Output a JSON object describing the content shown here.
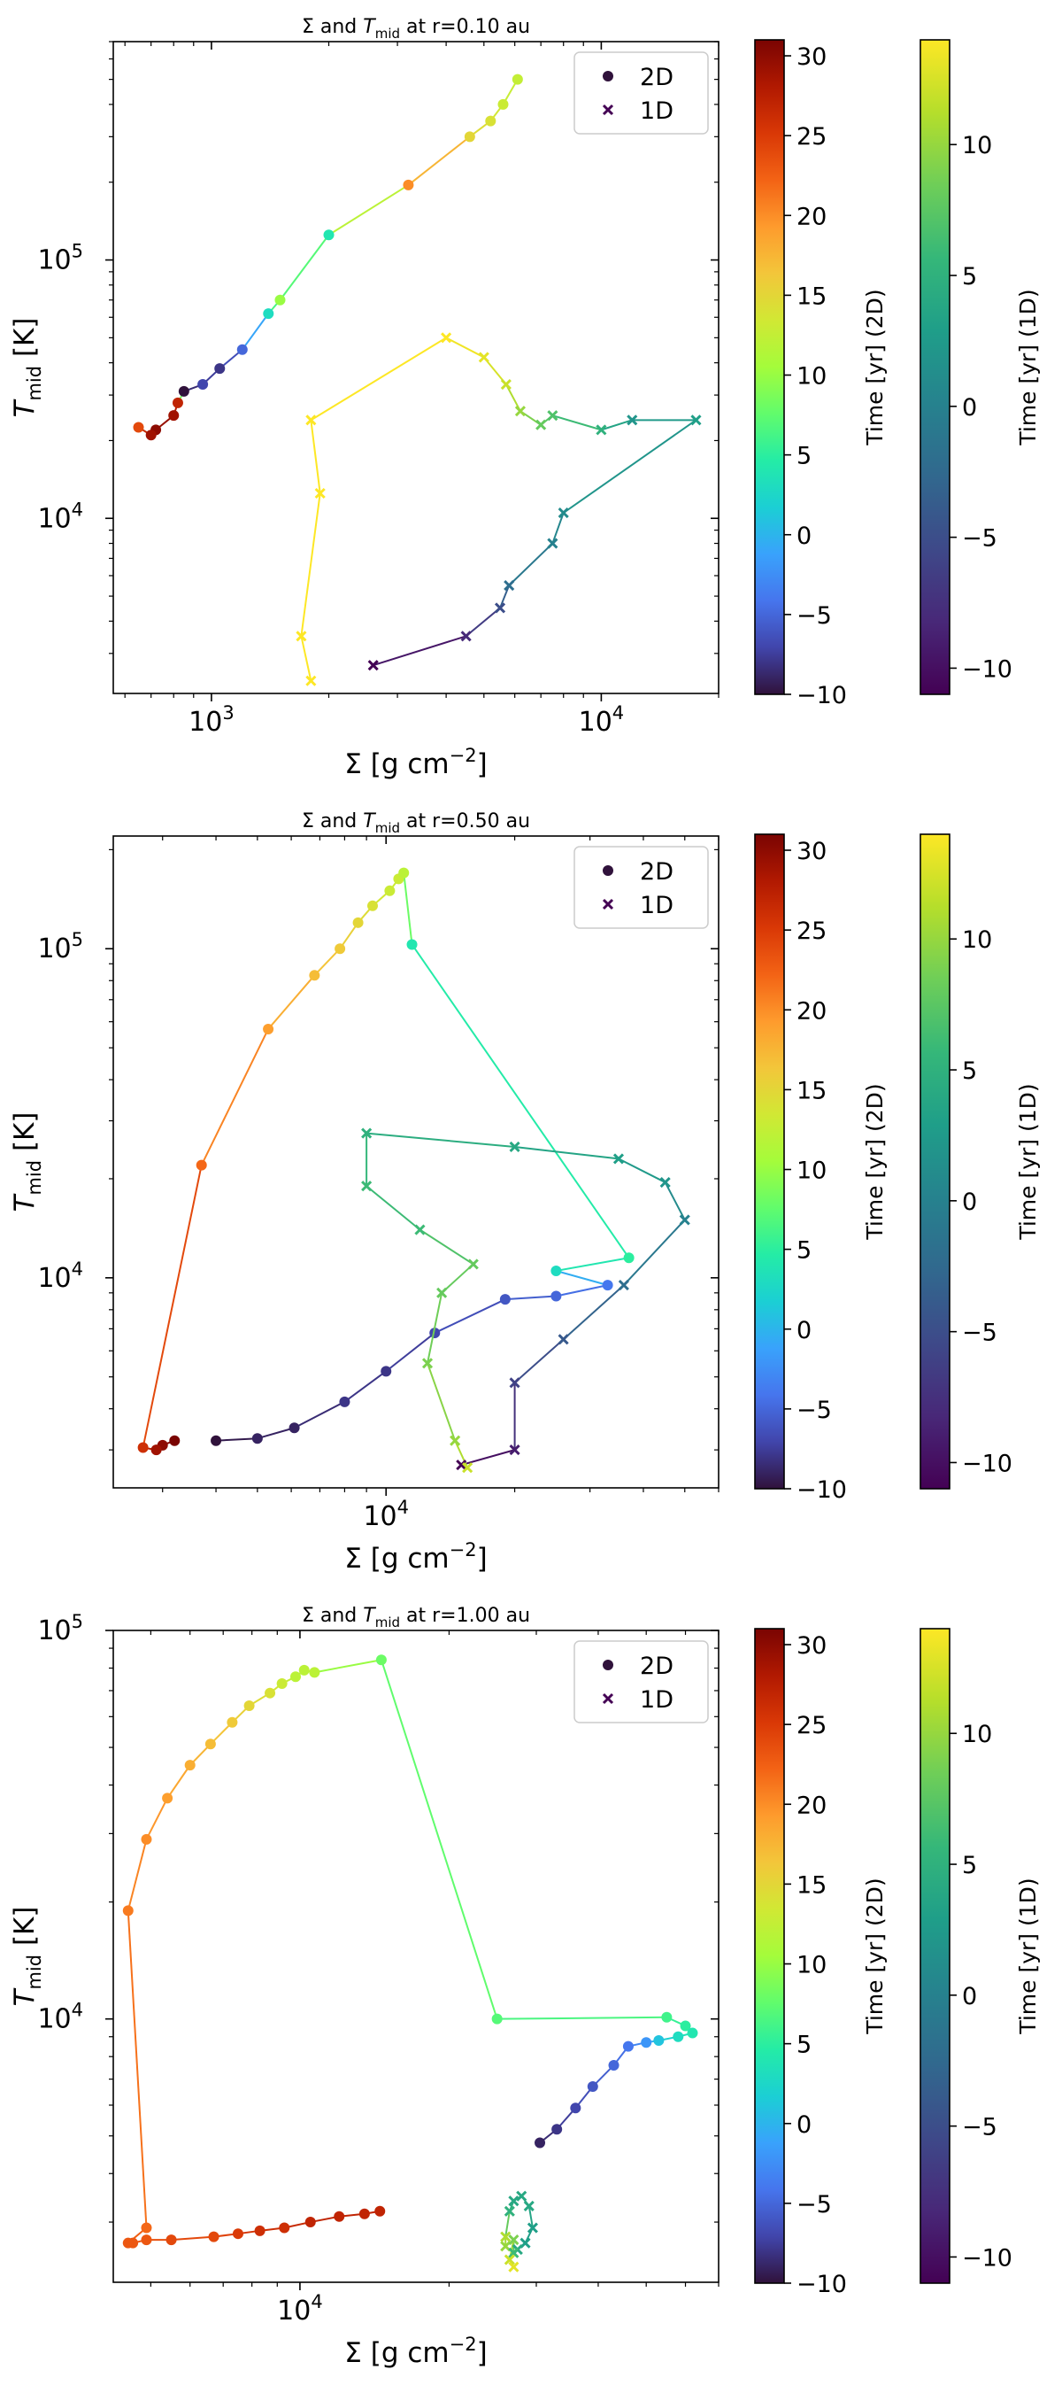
{
  "chart_data": [
    {
      "type": "scatter",
      "title_prefix": "Σ and ",
      "title_var": "T",
      "title_sub": "mid",
      "title_suffix": " at r=0.10 au",
      "xlabel": "Σ [g cm",
      "xlabel_sup": "−2",
      "xlabel_end": "]",
      "ylabel_var": "T",
      "ylabel_sub": "mid",
      "ylabel_end": " [K]",
      "xscale": "log",
      "yscale": "log",
      "xlim": [
        560,
        20000
      ],
      "ylim": [
        2100,
        700000
      ],
      "x_major_ticks": [
        {
          "value": 1000,
          "base": "10",
          "exp": "3"
        },
        {
          "value": 10000,
          "base": "10",
          "exp": "4"
        }
      ],
      "y_major_ticks": [
        {
          "value": 10000,
          "base": "10",
          "exp": "4"
        },
        {
          "value": 100000,
          "base": "10",
          "exp": "5"
        }
      ],
      "legend": {
        "location": "top-right",
        "entries": [
          "2D",
          "1D"
        ]
      },
      "series": [
        {
          "name": "2D",
          "marker": "circle",
          "points": [
            [
              6100,
              500000,
              12.5
            ],
            [
              5600,
              400000,
              13
            ],
            [
              5200,
              345000,
              14
            ],
            [
              4600,
              300000,
              15
            ],
            [
              3200,
              195000,
              20
            ],
            [
              2000,
              125000,
              4
            ],
            [
              1500,
              70000,
              10
            ],
            [
              1400,
              62000,
              3
            ],
            [
              1200,
              45000,
              -5
            ],
            [
              1050,
              38000,
              -8
            ],
            [
              950,
              33000,
              -7
            ],
            [
              850,
              31000,
              -10
            ],
            [
              820,
              28000,
              27
            ],
            [
              800,
              25000,
              29
            ],
            [
              720,
              22000,
              30
            ],
            [
              700,
              21000,
              29
            ],
            [
              650,
              22500,
              24
            ]
          ]
        },
        {
          "name": "1D",
          "marker": "x",
          "points": [
            [
              2600,
              2700,
              -11
            ],
            [
              4500,
              3500,
              -8
            ],
            [
              5500,
              4500,
              -5
            ],
            [
              5800,
              5500,
              -2
            ],
            [
              7500,
              8000,
              0
            ],
            [
              8000,
              10500,
              1
            ],
            [
              17500,
              24000,
              3
            ],
            [
              12000,
              24000,
              2
            ],
            [
              10000,
              22000,
              5
            ],
            [
              7500,
              25000,
              7
            ],
            [
              7000,
              23000,
              8
            ],
            [
              6200,
              26000,
              10
            ],
            [
              5700,
              33000,
              12
            ],
            [
              5000,
              42000,
              13
            ],
            [
              4000,
              50000,
              14
            ],
            [
              1800,
              24000,
              14
            ],
            [
              1900,
              12500,
              14
            ],
            [
              1700,
              3500,
              14
            ],
            [
              1800,
              2350,
              14
            ]
          ]
        }
      ],
      "colorbars": [
        {
          "label": "Time [yr] (2D)",
          "range": [
            -10,
            31
          ],
          "colormap": "turbo",
          "ticks": [
            -10,
            -5,
            0,
            5,
            10,
            15,
            20,
            25,
            30
          ],
          "tick_labels": [
            "−10",
            "−5",
            "0",
            "5",
            "10",
            "15",
            "20",
            "25",
            "30"
          ]
        },
        {
          "label": "Time [yr] (1D)",
          "range": [
            -11,
            14
          ],
          "colormap": "viridis",
          "ticks": [
            -10,
            -5,
            0,
            5,
            10
          ],
          "tick_labels": [
            "−10",
            "−5",
            "0",
            "5",
            "10"
          ]
        }
      ]
    },
    {
      "type": "scatter",
      "title_prefix": "Σ and ",
      "title_var": "T",
      "title_sub": "mid",
      "title_suffix": " at r=0.50 au",
      "xlabel": "Σ [g cm",
      "xlabel_sup": "−2",
      "xlabel_end": "]",
      "ylabel_var": "T",
      "ylabel_sub": "mid",
      "ylabel_end": " [K]",
      "xscale": "log",
      "yscale": "log",
      "xlim": [
        2300,
        60000
      ],
      "ylim": [
        2300,
        220000
      ],
      "x_major_ticks": [
        {
          "value": 10000,
          "base": "10",
          "exp": "4"
        }
      ],
      "y_major_ticks": [
        {
          "value": 10000,
          "base": "10",
          "exp": "4"
        },
        {
          "value": 100000,
          "base": "10",
          "exp": "5"
        }
      ],
      "legend": {
        "location": "top-right",
        "entries": [
          "2D",
          "1D"
        ]
      },
      "series": [
        {
          "name": "2D",
          "marker": "circle",
          "points": [
            [
              3200,
              3200,
              31
            ],
            [
              3000,
              3100,
              30
            ],
            [
              2900,
              3000,
              29
            ],
            [
              2700,
              3050,
              26
            ],
            [
              3700,
              22000,
              22
            ],
            [
              5300,
              57000,
              19
            ],
            [
              6800,
              83000,
              17
            ],
            [
              7800,
              100000,
              16
            ],
            [
              8600,
              120000,
              15
            ],
            [
              9300,
              135000,
              14
            ],
            [
              10200,
              150000,
              13
            ],
            [
              10700,
              163000,
              13
            ],
            [
              11000,
              170000,
              12
            ],
            [
              11500,
              103000,
              4
            ],
            [
              37000,
              11500,
              5
            ],
            [
              25000,
              10500,
              3
            ],
            [
              33000,
              9500,
              -4
            ],
            [
              25000,
              8800,
              -5
            ],
            [
              19000,
              8600,
              -6
            ],
            [
              13000,
              6800,
              -7
            ],
            [
              10000,
              5200,
              -8
            ],
            [
              8000,
              4200,
              -8
            ],
            [
              6100,
              3500,
              -9
            ],
            [
              5000,
              3250,
              -9
            ],
            [
              4000,
              3200,
              -10
            ]
          ]
        },
        {
          "name": "1D",
          "marker": "x",
          "points": [
            [
              15000,
              2700,
              -11
            ],
            [
              20000,
              3000,
              -9
            ],
            [
              20000,
              4800,
              -6
            ],
            [
              26000,
              6500,
              -4
            ],
            [
              36000,
              9500,
              -2
            ],
            [
              50000,
              15000,
              0
            ],
            [
              45000,
              19500,
              2
            ],
            [
              35000,
              23000,
              3
            ],
            [
              20000,
              25000,
              4
            ],
            [
              9000,
              27500,
              5
            ],
            [
              9000,
              19000,
              6
            ],
            [
              12000,
              14000,
              6
            ],
            [
              16000,
              11000,
              8
            ],
            [
              13500,
              9000,
              8
            ],
            [
              12500,
              5500,
              9
            ],
            [
              14500,
              3200,
              10
            ],
            [
              15500,
              2650,
              12
            ]
          ]
        }
      ],
      "colorbars": [
        {
          "label": "Time [yr] (2D)",
          "range": [
            -10,
            31
          ],
          "colormap": "turbo",
          "ticks": [
            -10,
            -5,
            0,
            5,
            10,
            15,
            20,
            25,
            30
          ],
          "tick_labels": [
            "−10",
            "−5",
            "0",
            "5",
            "10",
            "15",
            "20",
            "25",
            "30"
          ]
        },
        {
          "label": "Time [yr] (1D)",
          "range": [
            -11,
            14
          ],
          "colormap": "viridis",
          "ticks": [
            -10,
            -5,
            0,
            5,
            10
          ],
          "tick_labels": [
            "−10",
            "−5",
            "0",
            "5",
            "10"
          ]
        }
      ]
    },
    {
      "type": "scatter",
      "title_prefix": "Σ and ",
      "title_var": "T",
      "title_sub": "mid",
      "title_suffix": " at r=1.00 au",
      "xlabel": "Σ [g cm",
      "xlabel_sup": "−2",
      "xlabel_end": "]",
      "ylabel_var": "T",
      "ylabel_sub": "mid",
      "ylabel_end": " [K]",
      "xscale": "log",
      "yscale": "log",
      "xlim": [
        4200,
        70000
      ],
      "ylim": [
        2100,
        100000
      ],
      "x_major_ticks": [
        {
          "value": 10000,
          "base": "10",
          "exp": "4"
        }
      ],
      "y_major_ticks": [
        {
          "value": 10000,
          "base": "10",
          "exp": "4"
        },
        {
          "value": 100000,
          "base": "10",
          "exp": "5"
        }
      ],
      "legend": {
        "location": "top-right",
        "entries": [
          "2D",
          "1D"
        ]
      },
      "series": [
        {
          "name": "2D",
          "marker": "circle",
          "points": [
            [
              14500,
              3200,
              27
            ],
            [
              13500,
              3150,
              27
            ],
            [
              12000,
              3100,
              27
            ],
            [
              10500,
              3000,
              27
            ],
            [
              9300,
              2900,
              26
            ],
            [
              8300,
              2850,
              26
            ],
            [
              7500,
              2800,
              25
            ],
            [
              6700,
              2750,
              24
            ],
            [
              5500,
              2700,
              24
            ],
            [
              4900,
              2700,
              23
            ],
            [
              4600,
              2650,
              23
            ],
            [
              4500,
              2650,
              23
            ],
            [
              4900,
              2900,
              22
            ],
            [
              4500,
              19000,
              21
            ],
            [
              4900,
              29000,
              20
            ],
            [
              5400,
              37000,
              19
            ],
            [
              6000,
              45000,
              18
            ],
            [
              6600,
              51000,
              17
            ],
            [
              7300,
              58000,
              16
            ],
            [
              7900,
              64000,
              15
            ],
            [
              8700,
              69000,
              14
            ],
            [
              9200,
              73000,
              13
            ],
            [
              9800,
              76000,
              12
            ],
            [
              10200,
              79000,
              12
            ],
            [
              10700,
              78000,
              12
            ],
            [
              14600,
              84000,
              8
            ],
            [
              25000,
              10000,
              7
            ],
            [
              55000,
              10100,
              6
            ],
            [
              60000,
              9600,
              5
            ],
            [
              62000,
              9200,
              4
            ],
            [
              58000,
              9000,
              3
            ],
            [
              53000,
              8800,
              1
            ],
            [
              50000,
              8700,
              -2
            ],
            [
              46000,
              8500,
              -4
            ],
            [
              43000,
              7600,
              -5
            ],
            [
              39000,
              6700,
              -6
            ],
            [
              36000,
              5900,
              -7
            ],
            [
              33000,
              5200,
              -8
            ],
            [
              30500,
              4800,
              -9
            ]
          ]
        },
        {
          "name": "1D",
          "marker": "x",
          "points": [
            [
              26000,
              2600,
              10
            ],
            [
              26000,
              2750,
              11
            ],
            [
              26500,
              3200,
              5
            ],
            [
              27000,
              3400,
              4
            ],
            [
              28000,
              3500,
              4
            ],
            [
              29000,
              3300,
              4
            ],
            [
              29500,
              2900,
              3
            ],
            [
              28500,
              2650,
              3
            ],
            [
              27500,
              2550,
              4
            ],
            [
              27000,
              2500,
              6
            ],
            [
              27000,
              2700,
              9
            ],
            [
              26500,
              2400,
              12
            ],
            [
              27000,
              2300,
              13
            ]
          ]
        }
      ],
      "colorbars": [
        {
          "label": "Time [yr] (2D)",
          "range": [
            -10,
            31
          ],
          "colormap": "turbo",
          "ticks": [
            -10,
            -5,
            0,
            5,
            10,
            15,
            20,
            25,
            30
          ],
          "tick_labels": [
            "−10",
            "−5",
            "0",
            "5",
            "10",
            "15",
            "20",
            "25",
            "30"
          ]
        },
        {
          "label": "Time [yr] (1D)",
          "range": [
            -11,
            14
          ],
          "colormap": "viridis",
          "ticks": [
            -10,
            -5,
            0,
            5,
            10
          ],
          "tick_labels": [
            "−10",
            "−5",
            "0",
            "5",
            "10"
          ]
        }
      ]
    }
  ]
}
